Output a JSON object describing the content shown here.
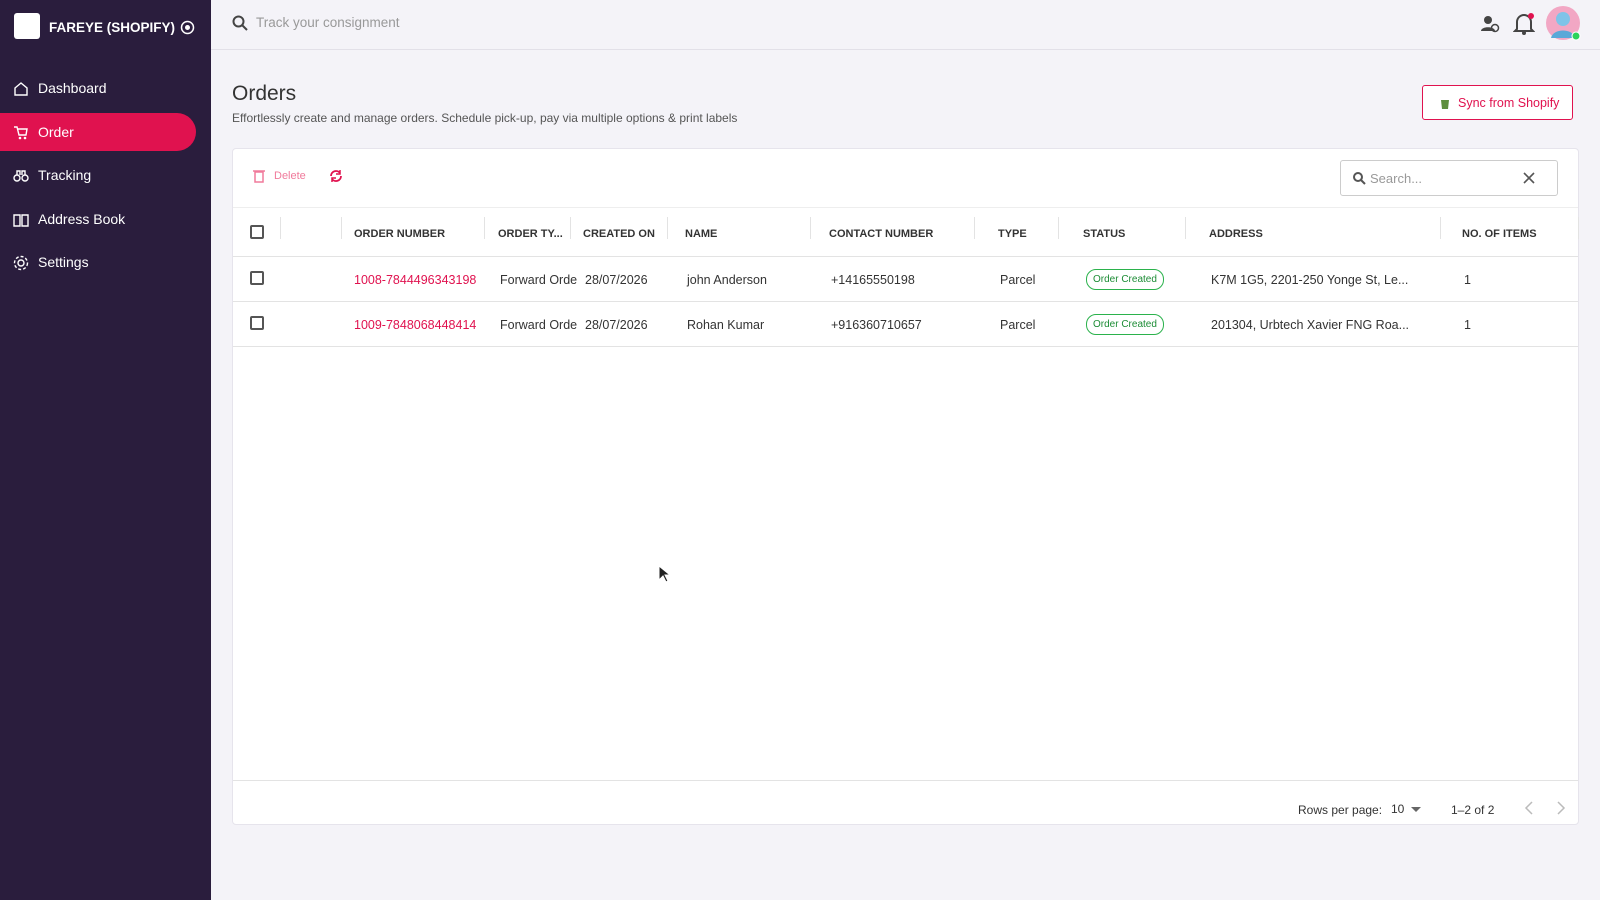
{
  "sidebar": {
    "brand": "FAREYE (SHOPIFY)",
    "nav": [
      "Dashboard",
      "Order",
      "Tracking",
      "Address Book",
      "Settings"
    ],
    "active": 1
  },
  "topbar": {
    "search_placeholder": "Track your consignment"
  },
  "header": {
    "title": "Orders",
    "subtitle": "Effortlessly create and manage orders. Schedule pick-up, pay via multiple options & print labels",
    "sync_button": "Sync from Shopify"
  },
  "toolbar": {
    "delete": "Delete",
    "search_placeholder": "Search..."
  },
  "table": {
    "columns": [
      "ORDER NUMBER",
      "ORDER TY...",
      "CREATED ON",
      "NAME",
      "CONTACT NUMBER",
      "TYPE",
      "STATUS",
      "ADDRESS",
      "NO. OF ITEMS"
    ],
    "rows": [
      [
        "1008-7844496343198",
        "Forward Orde",
        "28/07/2026",
        "john Anderson",
        "+14165550198",
        "Parcel",
        "Order Created",
        "K7M 1G5, 2201-250 Yonge St, Le...",
        1
      ],
      [
        "1009-7848068448414",
        "Forward Orde",
        "28/07/2026",
        "Rohan Kumar",
        "+916360710657",
        "Parcel",
        "Order Created",
        "201304, Urbtech Xavier FNG Roa...",
        1
      ]
    ]
  },
  "pagination": {
    "rows_per_page_label": "Rows per page:",
    "rows_per_page": "10",
    "range": "1–2 of 2"
  }
}
